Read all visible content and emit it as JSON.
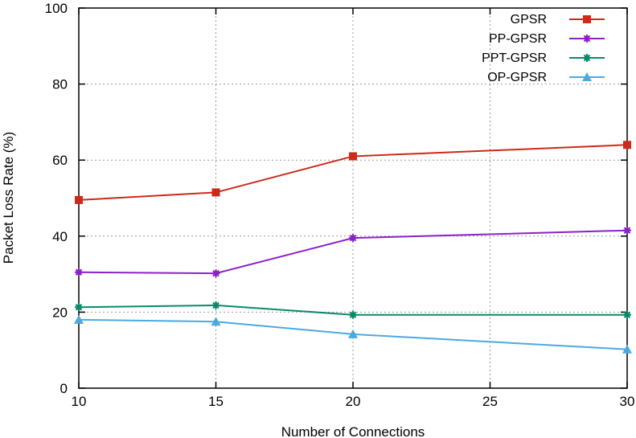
{
  "chart_data": {
    "type": "line",
    "xlabel": "Number of Connections",
    "ylabel": "Packet Loss Rate (%)",
    "xlim": [
      10,
      30
    ],
    "ylim": [
      0,
      100
    ],
    "xticks": [
      10,
      15,
      20,
      25,
      30
    ],
    "yticks": [
      0,
      20,
      40,
      60,
      80,
      100
    ],
    "grid": true,
    "legend_position": "top-right",
    "series": [
      {
        "name": "GPSR",
        "color": "#cc2a1a",
        "marker": "square",
        "x": [
          10,
          15,
          20,
          30
        ],
        "y": [
          49.5,
          51.5,
          61,
          64
        ]
      },
      {
        "name": "PP-GPSR",
        "color": "#8a22c8",
        "marker": "star",
        "x": [
          10,
          15,
          20,
          30
        ],
        "y": [
          30.5,
          30.2,
          39.5,
          41.5
        ]
      },
      {
        "name": "PPT-GPSR",
        "color": "#0a8a6a",
        "marker": "star",
        "x": [
          10,
          15,
          20,
          30
        ],
        "y": [
          21.3,
          21.8,
          19.3,
          19.3
        ]
      },
      {
        "name": "OP-GPSR",
        "color": "#4aaae0",
        "marker": "triangle",
        "x": [
          10,
          15,
          20,
          30
        ],
        "y": [
          18,
          17.5,
          14.2,
          10.2
        ]
      }
    ]
  }
}
